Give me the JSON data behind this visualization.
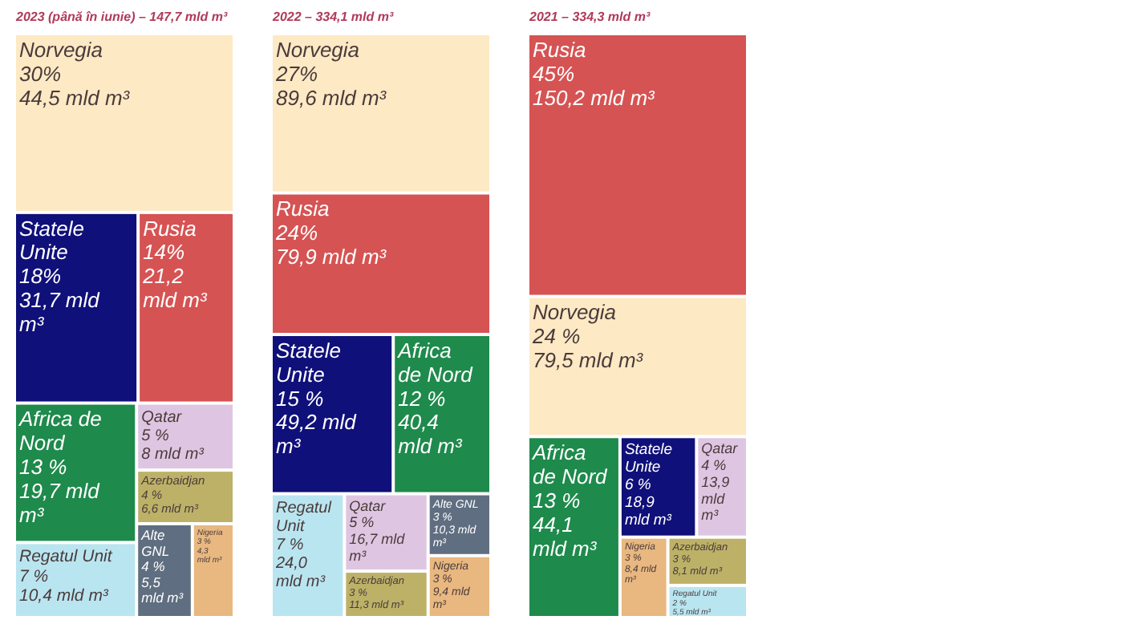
{
  "chart_data": [
    {
      "type": "other",
      "title": "2023 (până în iunie) – 147,7 mld m³",
      "categories": [
        "Norvegia",
        "Statele Unite",
        "Rusia",
        "Africa de Nord",
        "Regatul Unit",
        "Qatar",
        "Azerbaidjan",
        "Alte GNL",
        "Nigeria"
      ],
      "values": [
        30,
        18,
        14,
        13,
        7,
        5,
        4,
        4,
        3
      ],
      "value_labels": [
        "30%\n44,5 mld m³",
        "18%\n31,7 mld m³",
        "14%\n21,2 mld m³",
        "13 %\n19,7 mld m³",
        "7 %\n10,4 mld m³",
        "5 %\n8 mld m³",
        "4 %\n6,6 mld m³",
        "4 %\n5,5 mld m³",
        "3 %\n4,3 mld m³"
      ],
      "colors": [
        "#fde9c4",
        "#10107a",
        "#d65353",
        "#1e8a4c",
        "#b9e5f0",
        "#dec6e2",
        "#bdb168",
        "#5f6e80",
        "#e8b880"
      ]
    },
    {
      "type": "other",
      "title": "2022 – 334,1 mld m³",
      "categories": [
        "Norvegia",
        "Rusia",
        "Statele Unite",
        "Africa de Nord",
        "Regatul Unit",
        "Qatar",
        "Azerbaidjan",
        "Alte GNL",
        "Nigeria"
      ],
      "values": [
        27,
        24,
        15,
        12,
        7,
        5,
        3,
        3,
        3
      ],
      "value_labels": [
        "27%\n89,6 mld m³",
        "24%\n79,9 mld m³",
        "15 %\n49,2 mld m³",
        "12 %\n40,4 mld m³",
        "7 %\n24,0 mld m³",
        "5 %\n16,7 mld m³",
        "3 %\n11,3 mld m³",
        "3 %\n10,3 mld m³",
        "3 %\n9,4 mld m³"
      ],
      "colors": [
        "#fde9c4",
        "#d65353",
        "#10107a",
        "#1e8a4c",
        "#b9e5f0",
        "#dec6e2",
        "#bdb168",
        "#5f6e80",
        "#e8b880"
      ]
    },
    {
      "type": "other",
      "title": "2021 – 334,3 mld m³",
      "categories": [
        "Rusia",
        "Norvegia",
        "Africa de Nord",
        "Statele Unite",
        "Qatar",
        "Nigeria",
        "Azerbaidjan",
        "Regatul Unit"
      ],
      "values": [
        45,
        24,
        13,
        6,
        4,
        3,
        3,
        2
      ],
      "value_labels": [
        "45%\n150,2 mld m³",
        "24 %\n79,5 mld m³",
        "13 %\n44,1 mld m³",
        "6 %\n18,9 mld m³",
        "4 %\n13,9 mld m³",
        "3 %\n8,4 mld m³",
        "3 %\n8,1 mld m³",
        "2 %\n5,5 mld m³"
      ],
      "colors": [
        "#d65353",
        "#fde9c4",
        "#1e8a4c",
        "#10107a",
        "#dec6e2",
        "#e8b880",
        "#bdb168",
        "#b9e5f0"
      ]
    }
  ]
}
